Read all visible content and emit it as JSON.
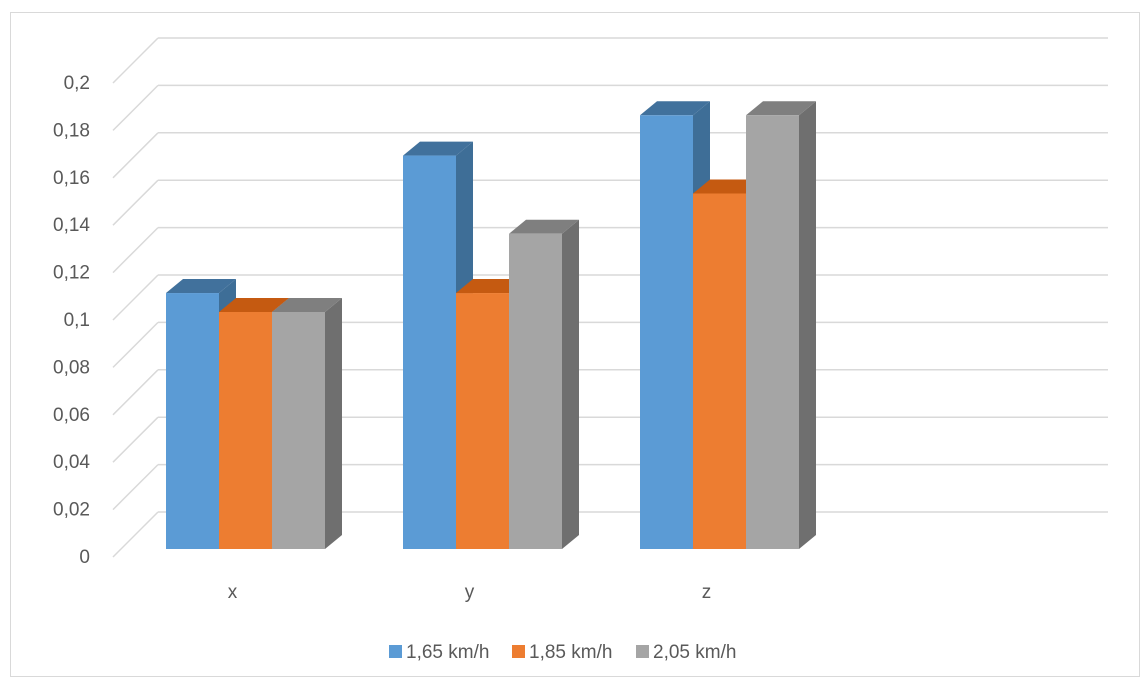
{
  "chart_data": {
    "type": "bar",
    "style": "3d-clustered-column",
    "categories": [
      "x",
      "y",
      "z"
    ],
    "series": [
      {
        "name": "1,65 km/h",
        "values": [
          0.108,
          0.166,
          0.183
        ],
        "color": "#5b9bd5",
        "top_color": "#41719c",
        "side_color": "#3e6e97"
      },
      {
        "name": "1,85 km/h",
        "values": [
          0.1,
          0.108,
          0.15
        ],
        "color": "#ed7d31",
        "top_color": "#c55a11",
        "side_color": "#b45a1f"
      },
      {
        "name": "2,05 km/h",
        "values": [
          0.1,
          0.133,
          0.183
        ],
        "color": "#a5a5a5",
        "top_color": "#7f7f7f",
        "side_color": "#6f6f6f"
      }
    ],
    "ylim": [
      0,
      0.2
    ],
    "yticks": [
      "0",
      "0,02",
      "0,04",
      "0,06",
      "0,08",
      "0,1",
      "0,12",
      "0,14",
      "0,16",
      "0,18",
      "0,2"
    ],
    "grid": true,
    "legend_position": "bottom",
    "title": "",
    "xlabel": "",
    "ylabel": ""
  }
}
